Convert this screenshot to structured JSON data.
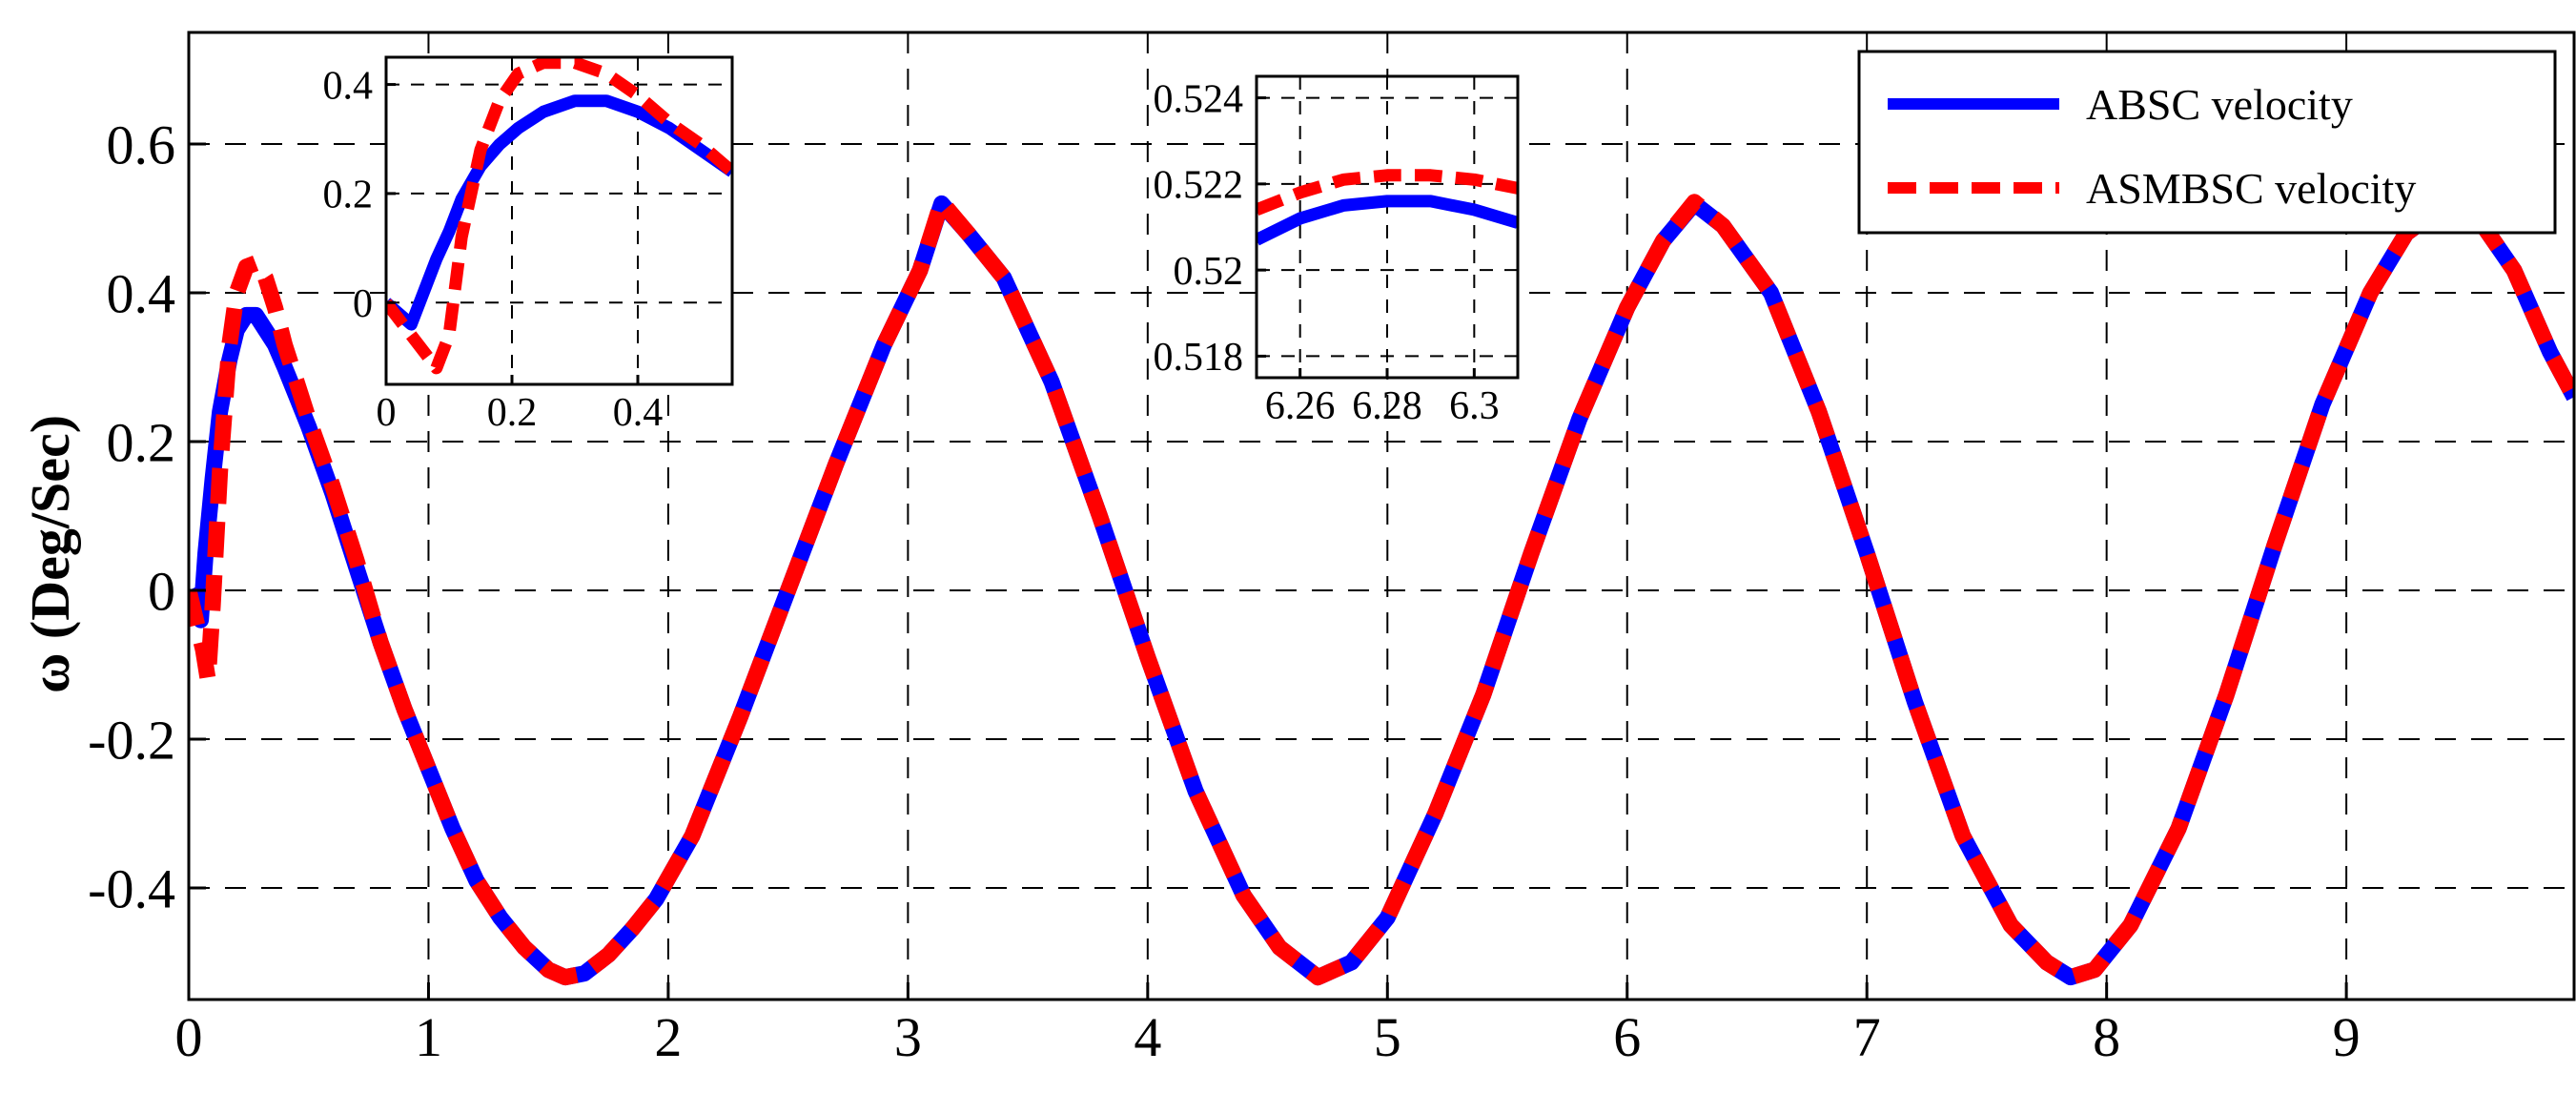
{
  "chart_data": [
    {
      "id": "main",
      "type": "line",
      "title": "",
      "xlabel": "",
      "ylabel": "ω (Deg/Sec)",
      "xlim": [
        0,
        9.95
      ],
      "ylim": [
        -0.55,
        0.75
      ],
      "xticks": [
        0,
        1,
        2,
        3,
        4,
        5,
        6,
        7,
        8,
        9
      ],
      "xtick_labels": [
        "0",
        "1",
        "2",
        "3",
        "4",
        "5",
        "6",
        "7",
        "8",
        "9"
      ],
      "yticks": [
        -0.4,
        -0.2,
        0,
        0.2,
        0.4,
        0.6
      ],
      "ytick_labels": [
        "-0.4",
        "-0.2",
        "0",
        "0.2",
        "0.4",
        "0.6"
      ],
      "grid": true,
      "legend_position": "top-right",
      "series": [
        {
          "name": "ABSC velocity",
          "color": "#0000ff",
          "style": "solid",
          "x": [
            0,
            0.03,
            0.05,
            0.07,
            0.1,
            0.13,
            0.17,
            0.2,
            0.24,
            0.28,
            0.32,
            0.36,
            0.4,
            0.45,
            0.5,
            0.6,
            0.7,
            0.8,
            0.9,
            1.0,
            1.1,
            1.2,
            1.3,
            1.4,
            1.5,
            1.57,
            1.65,
            1.75,
            1.85,
            1.95,
            2.1,
            2.3,
            2.5,
            2.7,
            2.9,
            3.05,
            3.14,
            3.25,
            3.4,
            3.6,
            3.8,
            4.0,
            4.2,
            4.4,
            4.55,
            4.71,
            4.85,
            5.0,
            5.2,
            5.4,
            5.6,
            5.8,
            6.0,
            6.15,
            6.28,
            6.4,
            6.6,
            6.8,
            7.0,
            7.2,
            7.4,
            7.6,
            7.75,
            7.85,
            7.95,
            8.1,
            8.3,
            8.5,
            8.7,
            8.9,
            9.1,
            9.25,
            9.42,
            9.55,
            9.7,
            9.85,
            9.95
          ],
          "y": [
            0,
            -0.02,
            -0.04,
            0.05,
            0.15,
            0.24,
            0.31,
            0.35,
            0.37,
            0.37,
            0.35,
            0.33,
            0.3,
            0.26,
            0.22,
            0.13,
            0.03,
            -0.07,
            -0.16,
            -0.24,
            -0.32,
            -0.39,
            -0.44,
            -0.48,
            -0.51,
            -0.52,
            -0.515,
            -0.49,
            -0.455,
            -0.415,
            -0.33,
            -0.17,
            0.0,
            0.17,
            0.33,
            0.43,
            0.52,
            0.48,
            0.42,
            0.28,
            0.1,
            -0.09,
            -0.27,
            -0.41,
            -0.48,
            -0.52,
            -0.5,
            -0.44,
            -0.3,
            -0.14,
            0.05,
            0.23,
            0.38,
            0.47,
            0.52,
            0.49,
            0.4,
            0.24,
            0.05,
            -0.15,
            -0.33,
            -0.45,
            -0.5,
            -0.52,
            -0.51,
            -0.45,
            -0.32,
            -0.14,
            0.06,
            0.25,
            0.4,
            0.48,
            0.52,
            0.5,
            0.43,
            0.32,
            0.26
          ]
        },
        {
          "name": "ASMBSC velocity",
          "color": "#ff0000",
          "style": "dashed",
          "x": [
            0,
            0.03,
            0.06,
            0.08,
            0.1,
            0.13,
            0.17,
            0.2,
            0.24,
            0.28,
            0.32,
            0.36,
            0.4,
            0.45,
            0.5,
            0.6,
            0.7,
            0.8,
            0.9,
            1.0,
            1.1,
            1.2,
            1.3,
            1.4,
            1.5,
            1.57,
            1.65,
            1.75,
            1.85,
            1.95,
            2.1,
            2.3,
            2.5,
            2.7,
            2.9,
            3.05,
            3.14,
            3.25,
            3.4,
            3.6,
            3.8,
            4.0,
            4.2,
            4.4,
            4.55,
            4.71,
            4.85,
            5.0,
            5.2,
            5.4,
            5.6,
            5.8,
            6.0,
            6.15,
            6.28,
            6.4,
            6.6,
            6.8,
            7.0,
            7.2,
            7.4,
            7.6,
            7.75,
            7.85,
            7.95,
            8.1,
            8.3,
            8.5,
            8.7,
            8.9,
            9.1,
            9.25,
            9.42,
            9.55,
            9.7,
            9.85,
            9.95
          ],
          "y": [
            0,
            -0.04,
            -0.08,
            -0.12,
            -0.02,
            0.16,
            0.33,
            0.4,
            0.435,
            0.44,
            0.42,
            0.38,
            0.33,
            0.28,
            0.23,
            0.14,
            0.04,
            -0.07,
            -0.16,
            -0.24,
            -0.32,
            -0.39,
            -0.44,
            -0.48,
            -0.51,
            -0.52,
            -0.515,
            -0.49,
            -0.455,
            -0.415,
            -0.33,
            -0.17,
            0.0,
            0.17,
            0.33,
            0.43,
            0.522,
            0.48,
            0.42,
            0.28,
            0.1,
            -0.09,
            -0.27,
            -0.41,
            -0.48,
            -0.52,
            -0.5,
            -0.44,
            -0.3,
            -0.14,
            0.05,
            0.23,
            0.38,
            0.47,
            0.522,
            0.49,
            0.4,
            0.24,
            0.05,
            -0.15,
            -0.33,
            -0.45,
            -0.5,
            -0.52,
            -0.51,
            -0.45,
            -0.32,
            -0.14,
            0.06,
            0.25,
            0.4,
            0.48,
            0.52,
            0.5,
            0.43,
            0.32,
            0.26
          ]
        }
      ]
    },
    {
      "id": "inset-left",
      "type": "line",
      "xlim": [
        0,
        0.55
      ],
      "ylim": [
        -0.15,
        0.45
      ],
      "xticks": [
        0,
        0.2,
        0.4
      ],
      "xtick_labels": [
        "0",
        "0.2",
        "0.4"
      ],
      "yticks": [
        0,
        0.2,
        0.4
      ],
      "ytick_labels": [
        "0",
        "0.2",
        "0.4"
      ],
      "grid": true,
      "series": [
        {
          "name": "ABSC velocity",
          "color": "#0000ff",
          "style": "solid",
          "x": [
            0,
            0.02,
            0.04,
            0.06,
            0.08,
            0.1,
            0.12,
            0.15,
            0.18,
            0.21,
            0.25,
            0.3,
            0.35,
            0.4,
            0.45,
            0.5,
            0.55
          ],
          "y": [
            0,
            -0.02,
            -0.04,
            0.02,
            0.08,
            0.13,
            0.19,
            0.25,
            0.29,
            0.32,
            0.35,
            0.37,
            0.37,
            0.35,
            0.32,
            0.28,
            0.24
          ]
        },
        {
          "name": "ASMBSC velocity",
          "color": "#ff0000",
          "style": "dashed",
          "x": [
            0,
            0.02,
            0.04,
            0.06,
            0.08,
            0.1,
            0.12,
            0.15,
            0.18,
            0.21,
            0.25,
            0.3,
            0.35,
            0.4,
            0.45,
            0.5,
            0.55
          ],
          "y": [
            0,
            -0.03,
            -0.06,
            -0.09,
            -0.12,
            -0.06,
            0.12,
            0.28,
            0.37,
            0.42,
            0.44,
            0.44,
            0.42,
            0.38,
            0.33,
            0.29,
            0.24
          ]
        }
      ]
    },
    {
      "id": "inset-right",
      "type": "line",
      "xlim": [
        6.25,
        6.31
      ],
      "ylim": [
        0.5175,
        0.5245
      ],
      "xticks": [
        6.26,
        6.28,
        6.3
      ],
      "xtick_labels": [
        "6.26",
        "6.28",
        "6.3"
      ],
      "yticks": [
        0.518,
        0.52,
        0.522,
        0.524
      ],
      "ytick_labels": [
        "0.518",
        "0.52",
        "0.522",
        "0.524"
      ],
      "grid": true,
      "series": [
        {
          "name": "ABSC velocity",
          "color": "#0000ff",
          "style": "solid",
          "x": [
            6.25,
            6.26,
            6.27,
            6.28,
            6.29,
            6.3,
            6.31
          ],
          "y": [
            0.5207,
            0.5212,
            0.5215,
            0.5216,
            0.5216,
            0.5214,
            0.5211
          ]
        },
        {
          "name": "ASMBSC velocity",
          "color": "#ff0000",
          "style": "dashed",
          "x": [
            6.25,
            6.26,
            6.27,
            6.28,
            6.29,
            6.3,
            6.31
          ],
          "y": [
            0.5214,
            0.5218,
            0.5221,
            0.5222,
            0.5222,
            0.5221,
            0.5219
          ]
        }
      ]
    }
  ]
}
